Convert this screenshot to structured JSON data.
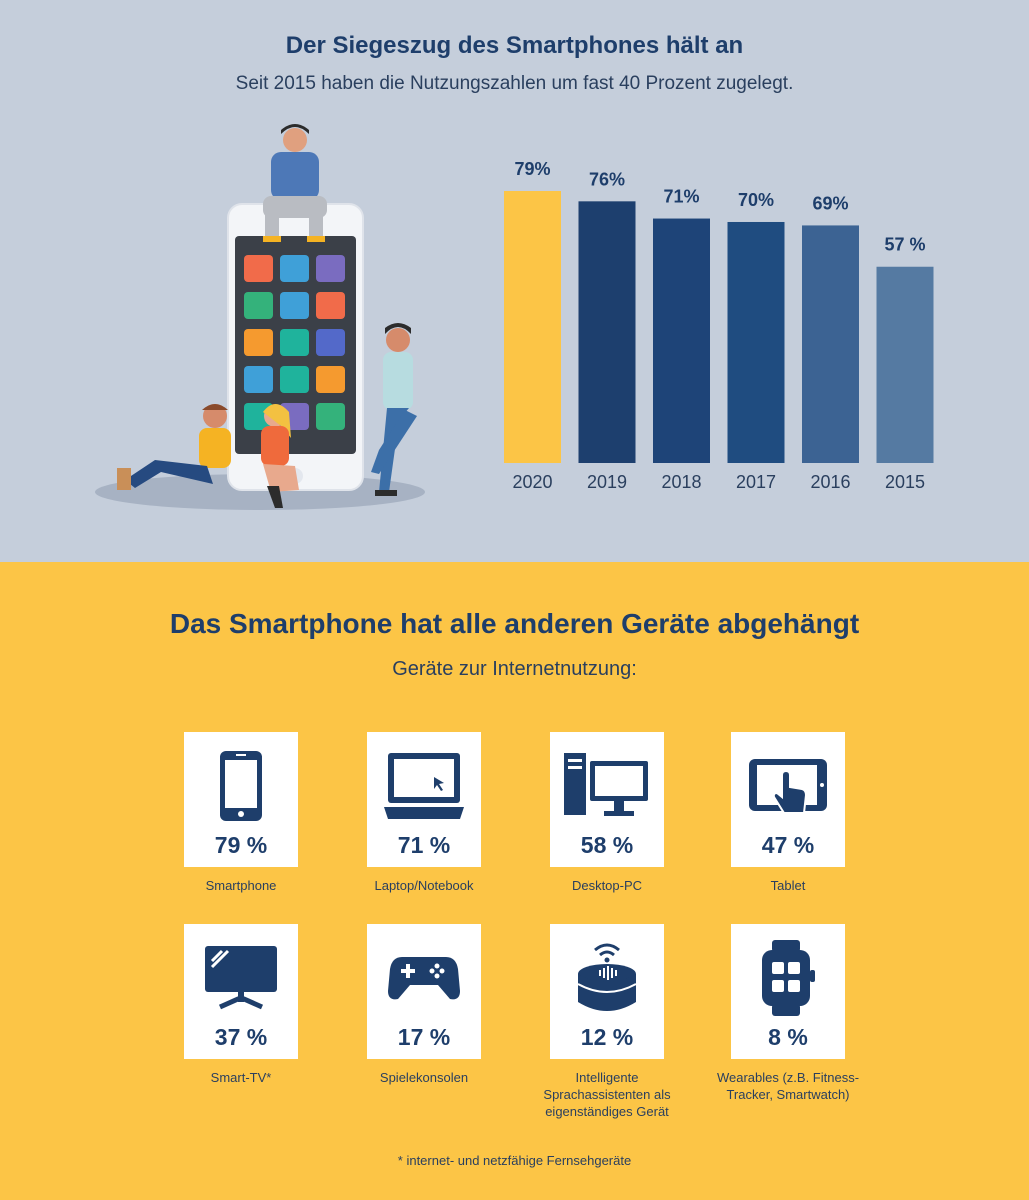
{
  "top": {
    "title": "Der Siegeszug des Smartphones hält an",
    "subtitle": "Seit 2015 haben die Nutzungszahlen um fast 40 Prozent zugelegt."
  },
  "chart_data": {
    "type": "bar",
    "categories": [
      "2020",
      "2019",
      "2018",
      "2017",
      "2016",
      "2015"
    ],
    "values": [
      79,
      76,
      71,
      70,
      69,
      57
    ],
    "data_labels": [
      "79%",
      "76%",
      "71%",
      "70%",
      "69%",
      "57 %"
    ],
    "ylim": [
      0,
      100
    ],
    "colors": [
      "#fcc546",
      "#1d3f6e",
      "#1e4478",
      "#1f4c80",
      "#3c6393",
      "#557aa2"
    ],
    "grid": false
  },
  "bottom": {
    "title": "Das Smartphone hat alle anderen Geräte abgehängt",
    "subtitle": "Geräte zur Internetnutzung:",
    "devices": [
      {
        "icon": "smartphone-icon",
        "value": 79,
        "pct": "79 %",
        "label": "Smartphone"
      },
      {
        "icon": "laptop-icon",
        "value": 71,
        "pct": "71 %",
        "label": "Laptop/Notebook"
      },
      {
        "icon": "desktop-pc-icon",
        "value": 58,
        "pct": "58 %",
        "label": "Desktop-PC"
      },
      {
        "icon": "tablet-icon",
        "value": 47,
        "pct": "47 %",
        "label": "Tablet"
      },
      {
        "icon": "smart-tv-icon",
        "value": 37,
        "pct": "37 %",
        "label": "Smart-TV*"
      },
      {
        "icon": "gamepad-icon",
        "value": 17,
        "pct": "17 %",
        "label": "Spielekonsolen"
      },
      {
        "icon": "smart-speaker-icon",
        "value": 12,
        "pct": "12 %",
        "label": "Intelligente Sprachassistenten als eigenständiges Gerät"
      },
      {
        "icon": "smartwatch-icon",
        "value": 8,
        "pct": "8 %",
        "label": "Wearables (z.B. Fitness-Tracker, Smartwatch)"
      }
    ],
    "footnote": "* internet- und netzfähige Fernsehgeräte"
  },
  "colors": {
    "navy": "#1e3e6b",
    "yellow": "#fcc546",
    "background_top": "#c5cedb"
  }
}
